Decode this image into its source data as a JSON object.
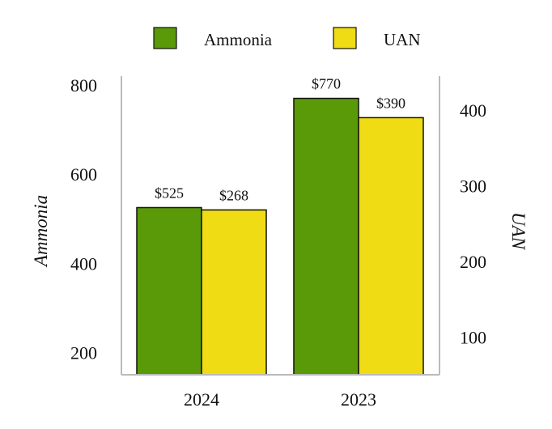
{
  "chart_data": {
    "type": "bar",
    "categories": [
      "2024",
      "2023"
    ],
    "series": [
      {
        "name": "Ammonia",
        "axis": "left",
        "color": "#5a9a08",
        "values": [
          525,
          770
        ],
        "labels": [
          "$525",
          "$770"
        ]
      },
      {
        "name": "UAN",
        "axis": "right",
        "color": "#f0dc14",
        "values": [
          268,
          390
        ],
        "labels": [
          "$268",
          "$390"
        ]
      }
    ],
    "ylabel_left": "Ammonia",
    "ylabel_right": "UAN",
    "ylim_left": [
      150,
      820
    ],
    "ylim_right": [
      50,
      445
    ],
    "yticks_left": [
      "200",
      "400",
      "600",
      "800"
    ],
    "yticks_right": [
      "100",
      "200",
      "300",
      "400"
    ],
    "legend_position": "top-center",
    "grid": false
  }
}
